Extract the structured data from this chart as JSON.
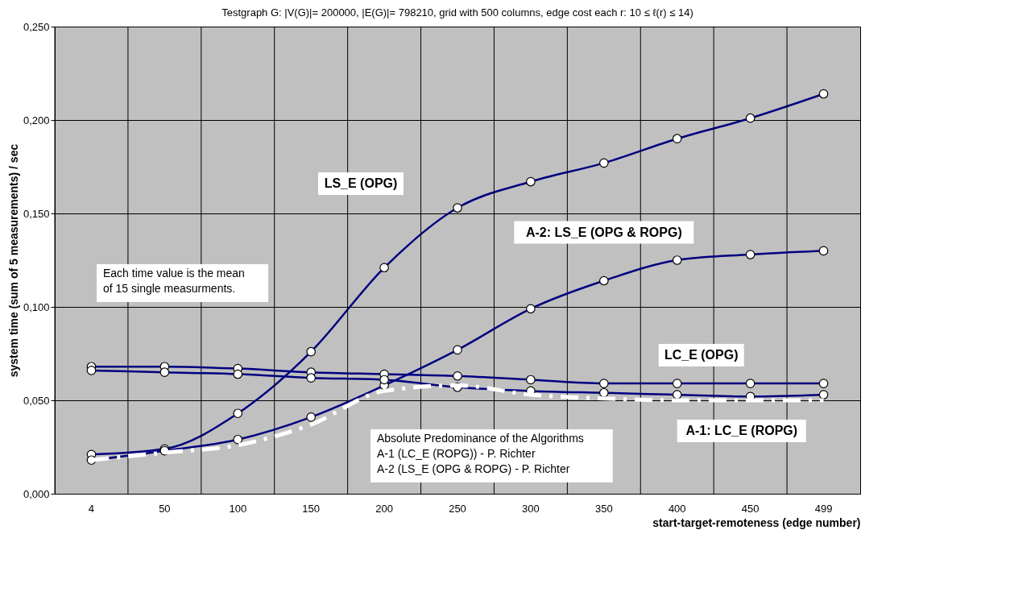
{
  "chart_data": {
    "type": "line",
    "title": "Testgraph G: |V(G)|= 200000, |E(G)|= 798210, grid with 500 columns,  edge cost  each r: 10 ≤  ℓ(r)  ≤ 14)",
    "xlabel": "start-target-remoteness (edge number)",
    "ylabel": "system time (sum of 5 measurements) / sec",
    "categories": [
      "4",
      "50",
      "100",
      "150",
      "200",
      "250",
      "300",
      "350",
      "400",
      "450",
      "499"
    ],
    "series": [
      {
        "name": "LS_E (OPG)",
        "color": "#000080",
        "marker": "circle",
        "line_style": "solid",
        "values": [
          0.021,
          0.024,
          0.043,
          0.076,
          0.121,
          0.153,
          0.167,
          0.177,
          0.19,
          0.201,
          0.214
        ]
      },
      {
        "name": "A-2:  LS_E (OPG & ROPG)",
        "color": "#000080",
        "marker": "circle",
        "line_style": "solid",
        "values": [
          0.018,
          0.023,
          0.029,
          0.041,
          0.058,
          0.077,
          0.099,
          0.114,
          0.125,
          0.128,
          0.13
        ]
      },
      {
        "name": "LC_E (OPG)",
        "color": "#000080",
        "marker": "circle",
        "line_style": "solid",
        "values": [
          0.068,
          0.068,
          0.067,
          0.065,
          0.064,
          0.063,
          0.061,
          0.059,
          0.059,
          0.059,
          0.059
        ]
      },
      {
        "name": "A-1: LC_E (ROPG)",
        "color": "#000080",
        "marker": "circle",
        "line_style": "solid",
        "values": [
          0.066,
          0.065,
          0.064,
          0.062,
          0.061,
          0.057,
          0.055,
          0.054,
          0.053,
          0.052,
          0.053
        ]
      },
      {
        "color": "#ffffff",
        "marker": "none",
        "line_style": "dashed",
        "values": [
          0.018,
          0.022,
          0.026,
          0.037,
          0.055,
          0.058,
          0.053,
          0.051,
          0.05,
          0.05,
          0.05
        ]
      }
    ],
    "ylim": [
      0,
      0.25
    ],
    "yticks": [
      {
        "value": 0,
        "label": "0,000"
      },
      {
        "value": 0.05,
        "label": "0,050"
      },
      {
        "value": 0.1,
        "label": "0,100"
      },
      {
        "value": 0.15,
        "label": "0,150"
      },
      {
        "value": 0.2,
        "label": "0,200"
      },
      {
        "value": 0.25,
        "label": "0,250"
      }
    ],
    "grid": true,
    "legend": false,
    "annotations": [
      "Each time value is the mean\nof 15 single measurments.",
      "Absolute Predominance of the Algorithms\nA-1 (LC_E (ROPG)) - P. Richter\nA-2 (LS_E (OPG & ROPG) - P. Richter"
    ]
  }
}
